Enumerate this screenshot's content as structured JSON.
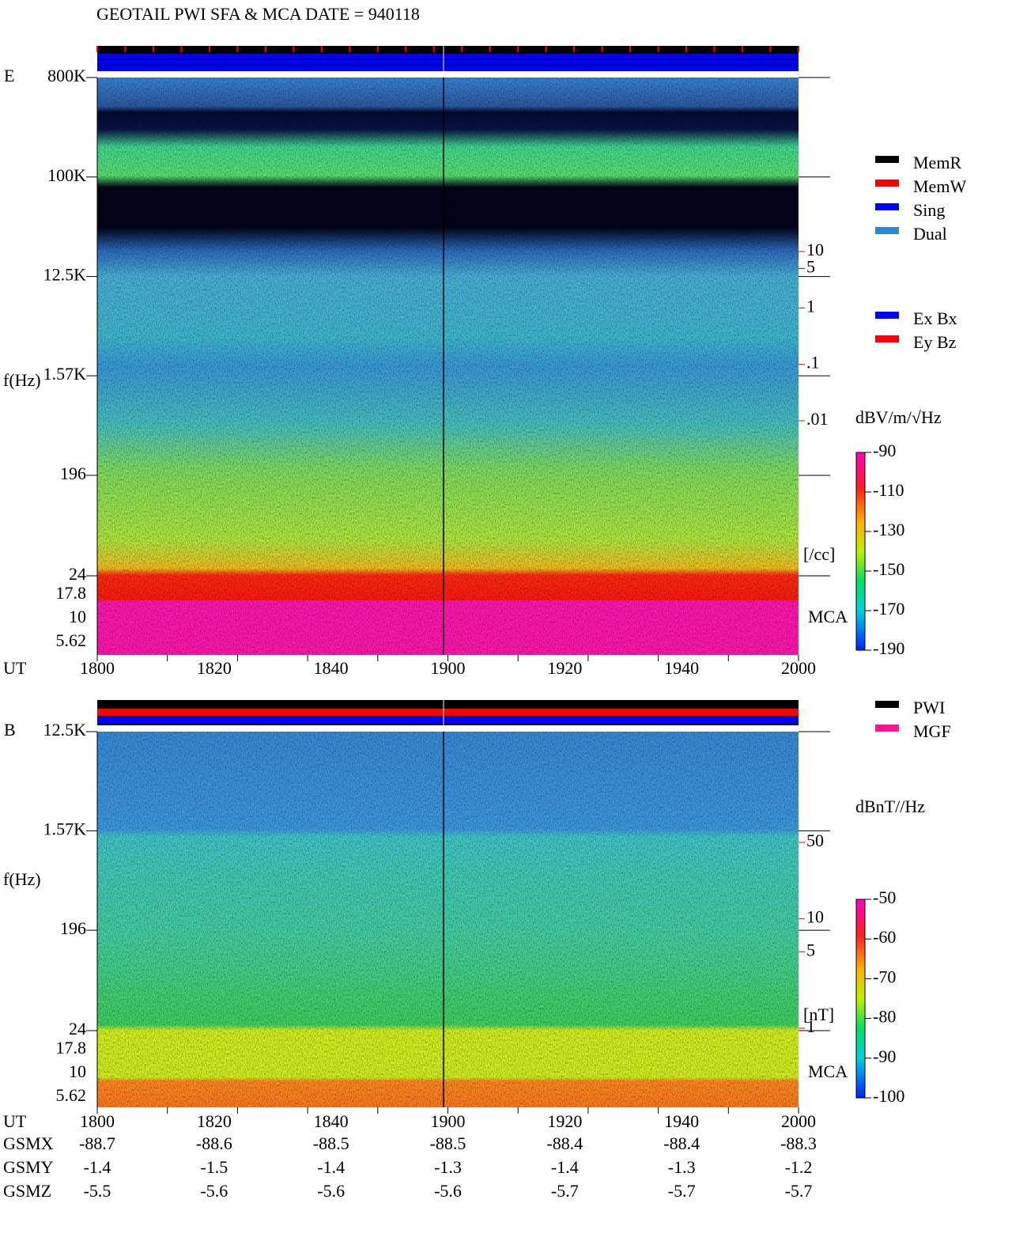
{
  "title": "GEOTAIL  PWI SFA & MCA   DATE = 940118",
  "chart_data": [
    {
      "type": "spectrogram",
      "panel_label": "E",
      "ylabel": "f(Hz)",
      "xlabel": "UT",
      "xlim": [
        1800,
        2000
      ],
      "xticks": [
        1800,
        1820,
        1840,
        1860,
        1880,
        1900,
        1920,
        1940,
        1960,
        1980,
        2000
      ],
      "xtick_labels": [
        1800,
        1820,
        1840,
        1900,
        1920,
        1940,
        2000
      ],
      "log_y": true,
      "ylim": [
        24,
        800000
      ],
      "yticks": [
        {
          "value": 800000,
          "label": "800K"
        },
        {
          "value": 100000,
          "label": "100K"
        },
        {
          "value": 12500,
          "label": "12.5K"
        },
        {
          "value": 1570,
          "label": "1.57K"
        },
        196,
        24
      ],
      "mca_label": "MCA",
      "mca_ticks": [
        17.8,
        10,
        5.62
      ],
      "y2lim": [
        0.01,
        10
      ],
      "y2ticks": [
        10,
        5,
        1,
        {
          "value": 0.1,
          "label": ".1"
        },
        {
          "value": 0.01,
          "label": ".01"
        }
      ],
      "y2label": "[/cc]",
      "y2color": "#ff0000",
      "colorbar": {
        "label": "dBV/m/√Hz",
        "lim": [
          -190,
          -90
        ],
        "ticks": [
          -90,
          -110,
          -130,
          -150,
          -170,
          -190
        ]
      },
      "legends": [
        [
          {
            "name": "MemR",
            "color": "#000000"
          },
          {
            "name": "MemW",
            "color": "#ff0000"
          },
          {
            "name": "Sing",
            "color": "#0000ff"
          },
          {
            "name": "Dual",
            "color": "#2a8ad0"
          }
        ],
        [
          {
            "name": "Ex Bx",
            "color": "#0000ff"
          },
          {
            "name": "Ey Bz",
            "color": "#ff0000"
          }
        ]
      ]
    },
    {
      "type": "spectrogram",
      "panel_label": "B",
      "ylabel": "f(Hz)",
      "xlabel": "UT",
      "xlim": [
        1800,
        2000
      ],
      "xticks": [
        1800,
        1820,
        1840,
        1860,
        1880,
        1900,
        1920,
        1940,
        1960,
        1980,
        2000
      ],
      "xtick_labels": [
        1800,
        1820,
        1840,
        1900,
        1920,
        1940,
        2000
      ],
      "log_y": true,
      "ylim": [
        24,
        12500
      ],
      "yticks": [
        {
          "value": 12500,
          "label": "12.5K"
        },
        {
          "value": 1570,
          "label": "1.57K"
        },
        196,
        24
      ],
      "mca_label": "MCA",
      "mca_ticks": [
        17.8,
        10,
        5.62
      ],
      "y2lim": [
        1,
        50
      ],
      "y2ticks": [
        50,
        10,
        5,
        1
      ],
      "y2label": "[nT]",
      "y2color": "#ff0000",
      "colorbar": {
        "label": "dBnT//Hz",
        "lim": [
          -100,
          -50
        ],
        "ticks": [
          -50,
          -60,
          -70,
          -80,
          -90,
          -100
        ]
      },
      "legends": [
        [
          {
            "name": "PWI",
            "color": "#000000"
          },
          {
            "name": "MGF",
            "color": "#ff1493"
          }
        ]
      ]
    }
  ],
  "orbit": {
    "rows": [
      {
        "label": "GSMX",
        "values": [
          -88.7,
          -88.6,
          -88.5,
          -88.5,
          -88.4,
          -88.4,
          -88.3
        ]
      },
      {
        "label": "GSMY",
        "values": [
          -1.4,
          -1.5,
          -1.4,
          -1.3,
          -1.4,
          -1.3,
          -1.2
        ]
      },
      {
        "label": "GSMZ",
        "values": [
          -5.5,
          -5.6,
          -5.6,
          -5.6,
          -5.7,
          -5.7,
          -5.7
        ]
      }
    ]
  }
}
